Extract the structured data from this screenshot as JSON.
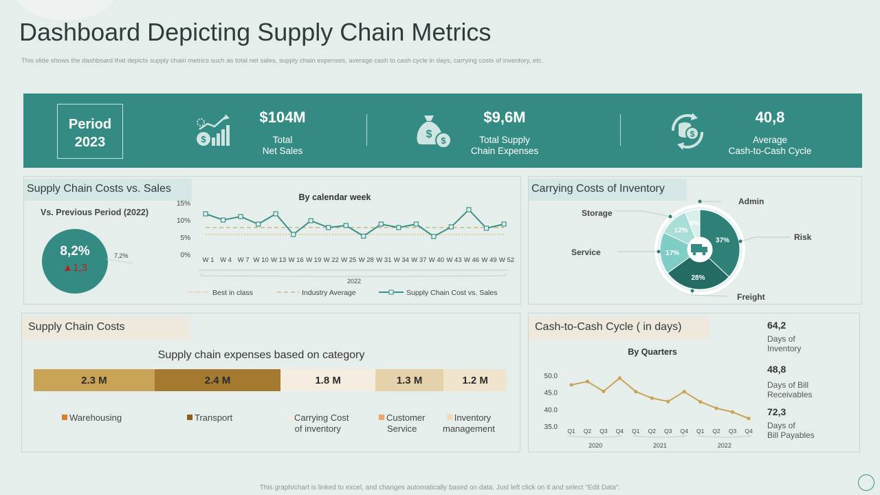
{
  "page": {
    "title": "Dashboard Depicting Supply Chain Metrics",
    "subtitle": "This slide shows the dashboard that depicts supply chain metrics such as total net sales, supply chain expenses, average cash to cash cycle in days, carrying costs of inventory, etc.",
    "footer": "This graph/chart is linked to excel, and changes automatically based on data. Just left click on it and select \"Edit Data\"."
  },
  "kpi": {
    "period_label": "Period",
    "period_year": "2023",
    "net_sales": {
      "value": "$104M",
      "label1": "Total",
      "label2": "Net Sales"
    },
    "expenses": {
      "value": "$9,6M",
      "label1": "Total Supply",
      "label2": "Chain Expenses"
    },
    "cycle": {
      "value": "40,8",
      "label1": "Average",
      "label2": "Cash-to-Cash  Cycle"
    }
  },
  "costs_vs_sales": {
    "title": "Supply Chain Costs  vs. Sales",
    "prev_label": "Vs. Previous Period (2022)",
    "circle_value": "8,2%",
    "circle_delta": "1,3",
    "side_value": "7,2%"
  },
  "carrying": {
    "title": "Carrying Costs  of Inventory",
    "labels": {
      "admin": "Admin",
      "storage": "Storage",
      "risk": "Risk",
      "service": "Service",
      "freight": "Freight"
    }
  },
  "supply_costs": {
    "title": "Supply Chain Costs",
    "chart_title": "Supply chain expenses based on category",
    "legend": [
      {
        "line1": "Warehousing",
        "line2": "",
        "color": "#d9822b"
      },
      {
        "line1": "Transport",
        "line2": "",
        "color": "#8f5e1f"
      },
      {
        "line1": "Carrying  Cost",
        "line2": "of inventory",
        "color": "#f5ede0"
      },
      {
        "line1": "Customer",
        "line2": "Service",
        "color": "#f0a86a"
      },
      {
        "line1": "Inventory",
        "line2": "management",
        "color": "#f5d8b8"
      }
    ]
  },
  "c2c": {
    "title": "Cash-to-Cash Cycle ( in days)",
    "stats": [
      {
        "value": "64,2",
        "line1": "Days of",
        "line2": "Inventory"
      },
      {
        "value": "48,8",
        "line1": "Days of Bill",
        "line2": "Receivables"
      },
      {
        "value": "72,3",
        "line1": "Days of",
        "line2": "Bill Payables"
      }
    ]
  },
  "chart_data": [
    {
      "type": "line",
      "title": "By calendar week",
      "xlabel": "2022",
      "ylabel": "",
      "categories": [
        "W 1",
        "W 4",
        "W 7",
        "W 10",
        "W 13",
        "W 16",
        "W 19",
        "W 22",
        "W 25",
        "W 28",
        "W 31",
        "W 34",
        "W 37",
        "W 40",
        "W 43",
        "W 46",
        "W 49",
        "W 52"
      ],
      "yticks": [
        "15%",
        "10%",
        "5%",
        "0%"
      ],
      "ylim": [
        0,
        15
      ],
      "series": [
        {
          "name": "Supply Chain Cost vs. Sales",
          "values": [
            12,
            10.2,
            11.2,
            9,
            12,
            6,
            10,
            8,
            8.6,
            5.5,
            9,
            8,
            9,
            5.4,
            8.2,
            13.2,
            7.8,
            9
          ]
        },
        {
          "name": "Industry Average",
          "values": [
            8,
            8,
            8,
            8,
            8,
            8,
            8,
            8,
            8,
            8,
            8,
            8,
            8,
            8,
            8,
            8,
            8,
            8
          ]
        },
        {
          "name": "Best in class",
          "values": [
            6,
            6,
            6,
            6,
            6,
            6,
            6,
            6,
            6,
            6,
            6,
            6,
            6,
            6,
            6,
            6,
            6,
            6
          ]
        }
      ],
      "legend": [
        "Best in class",
        "Industry Average",
        "Supply Chain Cost vs. Sales"
      ]
    },
    {
      "type": "pie",
      "title": "Carrying Costs of Inventory",
      "categories": [
        "Risk",
        "Freight",
        "Service",
        "Storage",
        "Admin"
      ],
      "values": [
        37,
        28,
        17,
        12,
        6
      ],
      "labels": [
        "37%",
        "28%",
        "17%",
        "12%",
        "6%"
      ],
      "colors": [
        "#2f8178",
        "#246b63",
        "#7fcdc6",
        "#a9ddd8",
        "#d8efec"
      ]
    },
    {
      "type": "bar",
      "title": "Supply chain expenses based on category",
      "categories": [
        "Warehousing",
        "Transport",
        "Carrying Cost of inventory",
        "Customer Service",
        "Inventory management"
      ],
      "values": [
        2.3,
        2.4,
        1.8,
        1.3,
        1.2
      ],
      "labels": [
        "2.3  M",
        "2.4  M",
        "1.8  M",
        "1.3  M",
        "1.2  M"
      ],
      "colors": [
        "#c9a355",
        "#a47a30",
        "#f5ede0",
        "#e5d2ab",
        "#f1e4cc"
      ]
    },
    {
      "type": "line",
      "title": "By Quarters",
      "categories": [
        "Q1",
        "Q2",
        "Q3",
        "Q4",
        "Q1",
        "Q2",
        "Q3",
        "Q4",
        "Q1",
        "Q2",
        "Q3",
        "Q4"
      ],
      "groups": [
        "2020",
        "2021",
        "2022"
      ],
      "yticks": [
        "50.0",
        "45.0",
        "40.0",
        "35.0"
      ],
      "ylim": [
        35,
        50
      ],
      "series": [
        {
          "name": "Cash-to-Cash Cycle",
          "values": [
            47.2,
            48.2,
            45.3,
            49.2,
            45.2,
            43.3,
            42.3,
            45.2,
            42.2,
            40.3,
            39.2,
            37.3
          ]
        }
      ]
    }
  ]
}
